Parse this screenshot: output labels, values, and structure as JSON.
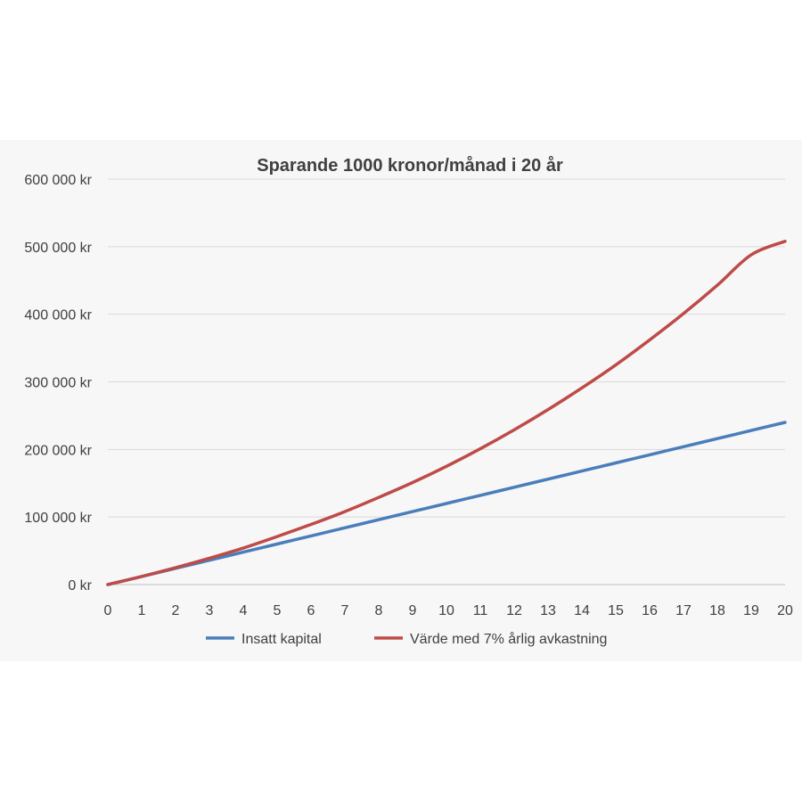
{
  "chart_data": {
    "type": "line",
    "title": "Sparande 1000 kronor/månad i 20 år",
    "xlabel": "",
    "ylabel": "",
    "x": [
      0,
      1,
      2,
      3,
      4,
      5,
      6,
      7,
      8,
      9,
      10,
      11,
      12,
      13,
      14,
      15,
      16,
      17,
      18,
      19,
      20
    ],
    "xlim": [
      0,
      20
    ],
    "ylim": [
      0,
      600000
    ],
    "y_ticks": [
      0,
      100000,
      200000,
      300000,
      400000,
      500000,
      600000
    ],
    "y_tick_labels": [
      "0 kr",
      "100 000 kr",
      "200 000 kr",
      "300 000 kr",
      "400 000 kr",
      "500 000 kr",
      "600 000 kr"
    ],
    "x_tick_labels": [
      "0",
      "1",
      "2",
      "3",
      "4",
      "5",
      "6",
      "7",
      "8",
      "9",
      "10",
      "11",
      "12",
      "13",
      "14",
      "15",
      "16",
      "17",
      "18",
      "19",
      "20"
    ],
    "grid": "horizontal",
    "legend_position": "bottom",
    "series": [
      {
        "name": "Insatt kapital",
        "color": "#4a7ebb",
        "values": [
          0,
          12000,
          24000,
          36000,
          48000,
          60000,
          72000,
          84000,
          96000,
          108000,
          120000,
          132000,
          144000,
          156000,
          168000,
          180000,
          192000,
          204000,
          216000,
          228000,
          240000
        ]
      },
      {
        "name": "Värde med  7% årlig avkastning",
        "color": "#be4b48",
        "values": [
          0,
          12000,
          25000,
          39000,
          54000,
          71000,
          89000,
          108000,
          129000,
          151000,
          175000,
          201000,
          229000,
          259000,
          291000,
          325000,
          362000,
          401000,
          443000,
          488000,
          508000
        ]
      }
    ]
  }
}
